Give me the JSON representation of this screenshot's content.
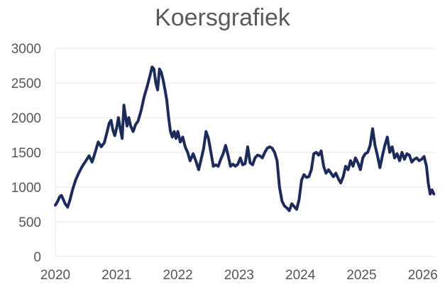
{
  "chart_data": {
    "type": "line",
    "title": "Koersgrafiek",
    "xlabel": "",
    "ylabel": "",
    "xlim": [
      2020,
      2026.2
    ],
    "ylim": [
      0,
      3000
    ],
    "x_ticks": [
      2020,
      2021,
      2022,
      2023,
      2024,
      2025,
      2026
    ],
    "x_tick_labels": [
      "2020",
      "2021",
      "2022",
      "2023",
      "2024",
      "2025",
      "2026"
    ],
    "y_ticks": [
      0,
      500,
      1000,
      1500,
      2000,
      2500,
      3000
    ],
    "y_tick_labels": [
      "0",
      "500",
      "1000",
      "1500",
      "2000",
      "2500",
      "3000"
    ],
    "grid": "horizontal",
    "line_color": "#1c2b5a",
    "grid_color": "#e4e4e4",
    "series": [
      {
        "values": [
          [
            2020.0,
            740
          ],
          [
            2020.04,
            800
          ],
          [
            2020.07,
            860
          ],
          [
            2020.1,
            880
          ],
          [
            2020.13,
            820
          ],
          [
            2020.16,
            760
          ],
          [
            2020.2,
            710
          ],
          [
            2020.24,
            820
          ],
          [
            2020.28,
            960
          ],
          [
            2020.33,
            1100
          ],
          [
            2020.38,
            1200
          ],
          [
            2020.44,
            1300
          ],
          [
            2020.5,
            1380
          ],
          [
            2020.55,
            1450
          ],
          [
            2020.6,
            1360
          ],
          [
            2020.65,
            1500
          ],
          [
            2020.7,
            1650
          ],
          [
            2020.75,
            1580
          ],
          [
            2020.8,
            1640
          ],
          [
            2020.84,
            1780
          ],
          [
            2020.88,
            1920
          ],
          [
            2020.91,
            1960
          ],
          [
            2020.94,
            1820
          ],
          [
            2020.97,
            1740
          ],
          [
            2021.0,
            1850
          ],
          [
            2021.03,
            2000
          ],
          [
            2021.06,
            1840
          ],
          [
            2021.09,
            1700
          ],
          [
            2021.12,
            2180
          ],
          [
            2021.14,
            2050
          ],
          [
            2021.17,
            1880
          ],
          [
            2021.2,
            2000
          ],
          [
            2021.23,
            1880
          ],
          [
            2021.27,
            1800
          ],
          [
            2021.31,
            1900
          ],
          [
            2021.35,
            1950
          ],
          [
            2021.4,
            2100
          ],
          [
            2021.45,
            2300
          ],
          [
            2021.5,
            2450
          ],
          [
            2021.55,
            2620
          ],
          [
            2021.58,
            2730
          ],
          [
            2021.61,
            2700
          ],
          [
            2021.64,
            2500
          ],
          [
            2021.67,
            2400
          ],
          [
            2021.7,
            2700
          ],
          [
            2021.73,
            2650
          ],
          [
            2021.76,
            2540
          ],
          [
            2021.79,
            2400
          ],
          [
            2021.82,
            2250
          ],
          [
            2021.85,
            2000
          ],
          [
            2021.88,
            1800
          ],
          [
            2021.91,
            1720
          ],
          [
            2021.94,
            1800
          ],
          [
            2021.97,
            1700
          ],
          [
            2022.0,
            1800
          ],
          [
            2022.04,
            1650
          ],
          [
            2022.08,
            1720
          ],
          [
            2022.12,
            1580
          ],
          [
            2022.16,
            1500
          ],
          [
            2022.2,
            1380
          ],
          [
            2022.25,
            1480
          ],
          [
            2022.3,
            1360
          ],
          [
            2022.34,
            1250
          ],
          [
            2022.38,
            1400
          ],
          [
            2022.42,
            1550
          ],
          [
            2022.46,
            1800
          ],
          [
            2022.5,
            1700
          ],
          [
            2022.54,
            1500
          ],
          [
            2022.58,
            1300
          ],
          [
            2022.62,
            1320
          ],
          [
            2022.66,
            1300
          ],
          [
            2022.7,
            1400
          ],
          [
            2022.74,
            1480
          ],
          [
            2022.78,
            1600
          ],
          [
            2022.82,
            1460
          ],
          [
            2022.86,
            1300
          ],
          [
            2022.9,
            1330
          ],
          [
            2022.94,
            1300
          ],
          [
            2022.98,
            1330
          ],
          [
            2023.02,
            1420
          ],
          [
            2023.06,
            1320
          ],
          [
            2023.1,
            1340
          ],
          [
            2023.14,
            1580
          ],
          [
            2023.18,
            1350
          ],
          [
            2023.22,
            1320
          ],
          [
            2023.26,
            1420
          ],
          [
            2023.3,
            1460
          ],
          [
            2023.34,
            1450
          ],
          [
            2023.38,
            1420
          ],
          [
            2023.42,
            1500
          ],
          [
            2023.46,
            1560
          ],
          [
            2023.5,
            1580
          ],
          [
            2023.54,
            1560
          ],
          [
            2023.58,
            1500
          ],
          [
            2023.62,
            1380
          ],
          [
            2023.66,
            1000
          ],
          [
            2023.7,
            800
          ],
          [
            2023.74,
            730
          ],
          [
            2023.78,
            700
          ],
          [
            2023.82,
            660
          ],
          [
            2023.86,
            760
          ],
          [
            2023.9,
            720
          ],
          [
            2023.94,
            680
          ],
          [
            2023.98,
            820
          ],
          [
            2024.02,
            1100
          ],
          [
            2024.06,
            1180
          ],
          [
            2024.1,
            1140
          ],
          [
            2024.14,
            1150
          ],
          [
            2024.18,
            1250
          ],
          [
            2024.22,
            1480
          ],
          [
            2024.26,
            1500
          ],
          [
            2024.3,
            1460
          ],
          [
            2024.34,
            1520
          ],
          [
            2024.38,
            1300
          ],
          [
            2024.42,
            1200
          ],
          [
            2024.46,
            1250
          ],
          [
            2024.5,
            1200
          ],
          [
            2024.54,
            1150
          ],
          [
            2024.58,
            1200
          ],
          [
            2024.62,
            1120
          ],
          [
            2024.66,
            1060
          ],
          [
            2024.7,
            1150
          ],
          [
            2024.74,
            1300
          ],
          [
            2024.78,
            1250
          ],
          [
            2024.82,
            1380
          ],
          [
            2024.86,
            1300
          ],
          [
            2024.9,
            1420
          ],
          [
            2024.94,
            1350
          ],
          [
            2024.98,
            1250
          ],
          [
            2025.02,
            1420
          ],
          [
            2025.06,
            1480
          ],
          [
            2025.1,
            1500
          ],
          [
            2025.14,
            1600
          ],
          [
            2025.18,
            1840
          ],
          [
            2025.22,
            1600
          ],
          [
            2025.26,
            1450
          ],
          [
            2025.3,
            1280
          ],
          [
            2025.34,
            1450
          ],
          [
            2025.38,
            1600
          ],
          [
            2025.42,
            1720
          ],
          [
            2025.46,
            1500
          ],
          [
            2025.5,
            1580
          ],
          [
            2025.54,
            1420
          ],
          [
            2025.58,
            1480
          ],
          [
            2025.62,
            1380
          ],
          [
            2025.66,
            1500
          ],
          [
            2025.7,
            1400
          ],
          [
            2025.74,
            1480
          ],
          [
            2025.78,
            1460
          ],
          [
            2025.82,
            1360
          ],
          [
            2025.86,
            1400
          ],
          [
            2025.9,
            1420
          ],
          [
            2025.94,
            1380
          ],
          [
            2025.98,
            1400
          ],
          [
            2026.02,
            1440
          ],
          [
            2026.06,
            1300
          ],
          [
            2026.09,
            1050
          ],
          [
            2026.12,
            900
          ],
          [
            2026.15,
            960
          ],
          [
            2026.18,
            900
          ]
        ]
      }
    ]
  }
}
